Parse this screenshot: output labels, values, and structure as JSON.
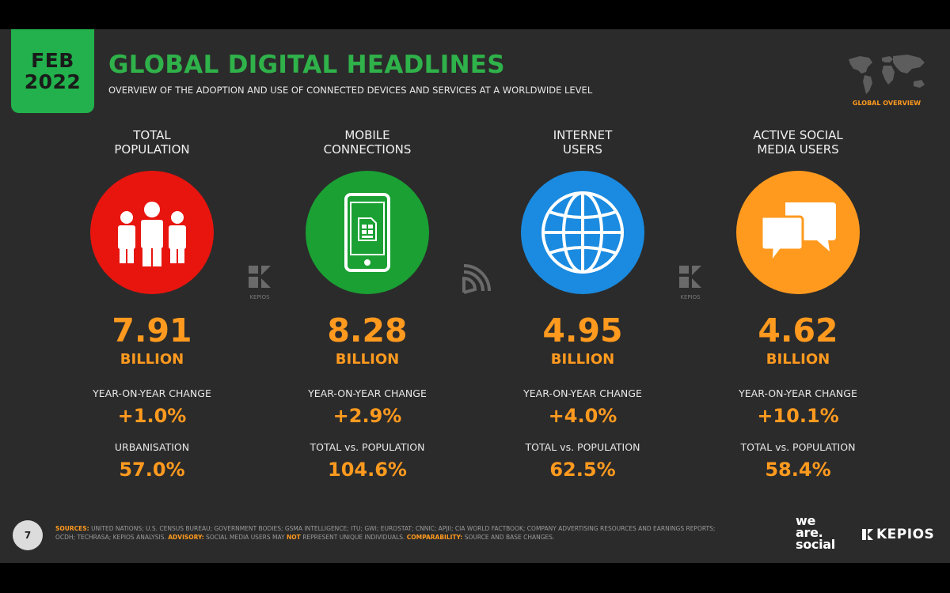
{
  "header": {
    "month": "FEB",
    "year": "2022",
    "title": "GLOBAL DIGITAL HEADLINES",
    "subtitle": "OVERVIEW OF THE ADOPTION AND USE OF CONNECTED DEVICES AND SERVICES AT A WORLDWIDE LEVEL",
    "section_label": "GLOBAL OVERVIEW"
  },
  "columns": [
    {
      "title_lines": [
        "TOTAL",
        "POPULATION"
      ],
      "icon": "people-icon",
      "circle_color": "#e8150f",
      "value": "7.91",
      "unit": "BILLION",
      "stat1_label": "YEAR-ON-YEAR CHANGE",
      "stat1_value": "+1.0%",
      "stat2_label": "URBANISATION",
      "stat2_value": "57.0%"
    },
    {
      "title_lines": [
        "MOBILE",
        "CONNECTIONS"
      ],
      "icon": "mobile-phone-icon",
      "circle_color": "#1aa033",
      "value": "8.28",
      "unit": "BILLION",
      "stat1_label": "YEAR-ON-YEAR CHANGE",
      "stat1_value": "+2.9%",
      "stat2_label": "TOTAL vs. POPULATION",
      "stat2_value": "104.6%"
    },
    {
      "title_lines": [
        "INTERNET",
        "USERS"
      ],
      "icon": "globe-icon",
      "circle_color": "#1a8be0",
      "value": "4.95",
      "unit": "BILLION",
      "stat1_label": "YEAR-ON-YEAR CHANGE",
      "stat1_value": "+4.0%",
      "stat2_label": "TOTAL vs. POPULATION",
      "stat2_value": "62.5%"
    },
    {
      "title_lines": [
        "ACTIVE SOCIAL",
        "MEDIA USERS"
      ],
      "icon": "chat-bubbles-icon",
      "circle_color": "#ff9a1f",
      "value": "4.62",
      "unit": "BILLION",
      "stat1_label": "YEAR-ON-YEAR CHANGE",
      "stat1_value": "+10.1%",
      "stat2_label": "TOTAL vs. POPULATION",
      "stat2_value": "58.4%"
    }
  ],
  "separators": {
    "kepios_small": "KEPIOS"
  },
  "footer": {
    "page_number": "7",
    "sources_key": "SOURCES:",
    "sources_text": "UNITED NATIONS; U.S. CENSUS BUREAU; GOVERNMENT BODIES; GSMA INTELLIGENCE; ITU; GWI; EUROSTAT; CNNIC; APJII; CIA WORLD FACTBOOK; COMPANY ADVERTISING RESOURCES AND EARNINGS REPORTS; OCDH; TECHRASA; KEPIOS ANALYSIS.",
    "advisory_key": "ADVISORY:",
    "advisory_text_a": "SOCIAL MEDIA USERS MAY",
    "advisory_not": "NOT",
    "advisory_text_b": "REPRESENT UNIQUE INDIVIDUALS.",
    "comparability_key": "COMPARABILITY:",
    "comparability_text": "SOURCE AND BASE CHANGES.",
    "brand_we": "we",
    "brand_are": "are.",
    "brand_social": "social",
    "brand_kepios": "KEPIOS"
  }
}
